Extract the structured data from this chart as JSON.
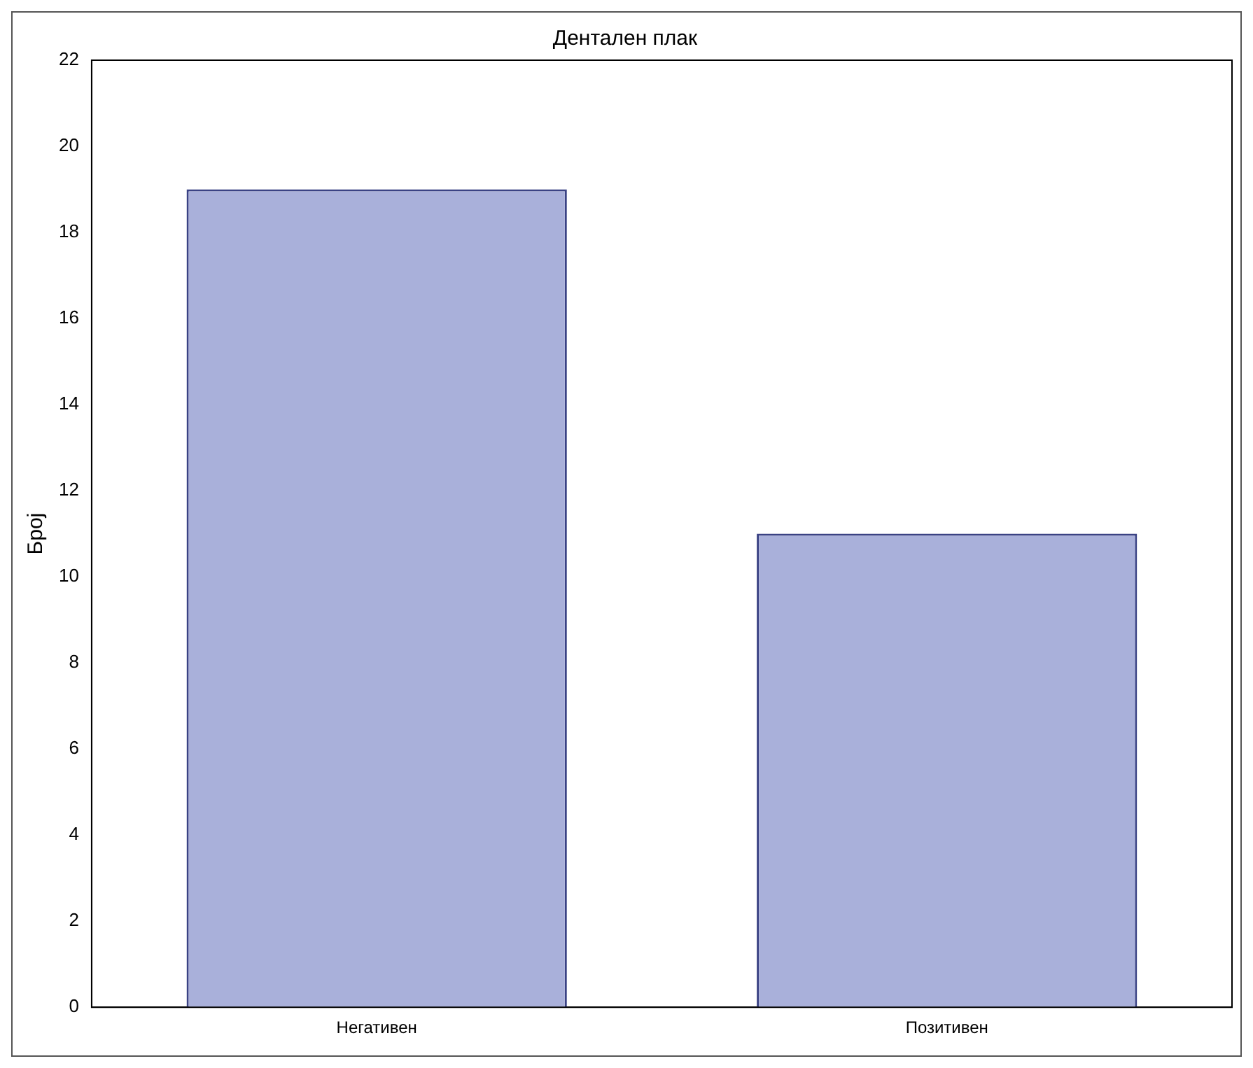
{
  "chart_data": {
    "type": "bar",
    "title": "Дентален плак",
    "ylabel": "Број",
    "categories": [
      "Негативен",
      "Позитивен"
    ],
    "values": [
      19,
      11
    ],
    "color": "#a9b0da",
    "ylim": [
      0,
      22
    ],
    "yticks": [
      0,
      2,
      4,
      6,
      8,
      10,
      12,
      14,
      16,
      18,
      20,
      22
    ],
    "grid": false,
    "legend": false
  }
}
